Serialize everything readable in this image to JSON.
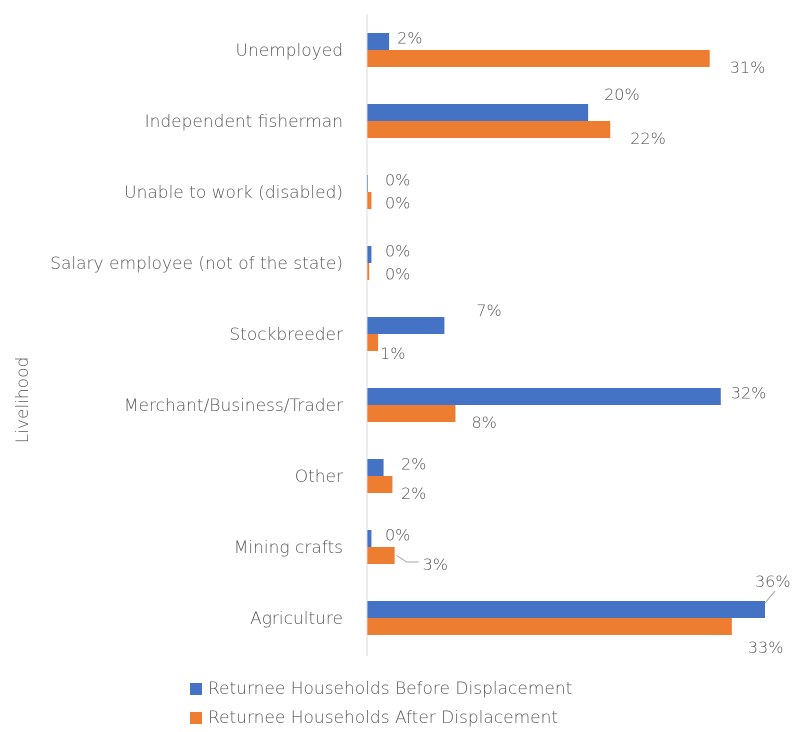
{
  "chart_data": {
    "type": "bar",
    "orientation": "horizontal",
    "ylabel": "Livelihood",
    "categories": [
      "Unemployed",
      "Independent fisherman",
      "Unable to work (disabled)",
      "Salary employee (not of the state)",
      "Stockbreeder",
      "Merchant/Business/Trader",
      "Other",
      "Mining crafts",
      "Agriculture"
    ],
    "series": [
      {
        "name": "Returnee Households Before Displacement",
        "color": "#4472C4",
        "values": [
          2,
          20,
          0,
          0.4,
          7,
          32,
          1.5,
          0.4,
          36
        ],
        "labels": [
          "2%",
          "20%",
          "0%",
          "0%",
          "7%",
          "32%",
          "2%",
          "0%",
          "36%"
        ]
      },
      {
        "name": "Returnee Households After Displacement",
        "color": "#ED7D31",
        "values": [
          31,
          22,
          0.4,
          0.2,
          1,
          8,
          2.3,
          2.5,
          33
        ],
        "labels": [
          "31%",
          "22%",
          "0%",
          "0%",
          "1%",
          "8%",
          "2%",
          "3%",
          "33%"
        ]
      }
    ],
    "grid": false,
    "legend_position": "bottom"
  }
}
